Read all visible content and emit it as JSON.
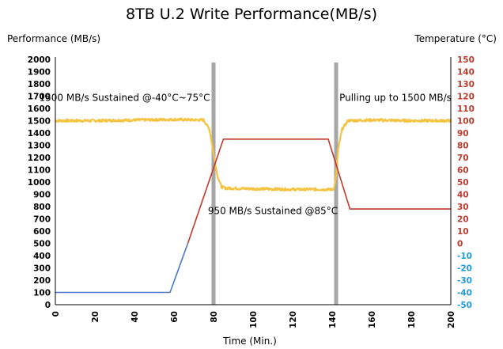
{
  "chart_data": {
    "type": "line",
    "title": "8TB U.2 Write Performance(MB/s)",
    "xlabel": "Time (Min.)",
    "ylabel_left": "Performance (MB/s)",
    "ylabel_right": "Temperature (°C)",
    "xlim": [
      0,
      200
    ],
    "ylim_left": [
      0,
      2000
    ],
    "ylim_right": [
      -50,
      150
    ],
    "x_ticks": [
      "0",
      "20",
      "40",
      "60",
      "80",
      "100",
      "120",
      "140",
      "160",
      "180",
      "200"
    ],
    "y_left_ticks": [
      "0",
      "100",
      "200",
      "300",
      "400",
      "500",
      "600",
      "700",
      "800",
      "900",
      "1000",
      "1100",
      "1200",
      "1300",
      "1400",
      "1500",
      "1600",
      "1700",
      "1800",
      "1900",
      "2000"
    ],
    "y_right_ticks": [
      "-50",
      "-40",
      "-30",
      "-20",
      "-10",
      "0",
      "10",
      "20",
      "30",
      "40",
      "50",
      "60",
      "70",
      "80",
      "90",
      "100",
      "110",
      "120",
      "130",
      "140",
      "150"
    ],
    "vertical_markers": [
      80,
      142
    ],
    "annotations": [
      {
        "text": "1500 MB/s Sustained @-40°C~75°C",
        "x": 35,
        "y": 1660
      },
      {
        "text": "950 MB/s Sustained @85°C",
        "x": 110,
        "y": 740
      },
      {
        "text": "Pulling up to 1500 MB/s",
        "x": 172,
        "y": 1660
      }
    ],
    "series": [
      {
        "axis": "left",
        "color": "#F5C342",
        "x": [
          0,
          20,
          40,
          60,
          75,
          78,
          80,
          82,
          84,
          86,
          100,
          120,
          140,
          141,
          142,
          143,
          145,
          148,
          160,
          180,
          200
        ],
        "y": [
          1500,
          1500,
          1505,
          1510,
          1505,
          1430,
          1230,
          1050,
          960,
          950,
          945,
          940,
          940,
          950,
          1050,
          1260,
          1430,
          1500,
          1505,
          1500,
          1500
        ]
      },
      {
        "axis": "right",
        "color": "#4A78C2",
        "x": [
          0,
          58,
          67
        ],
        "y": [
          -40,
          -40,
          0
        ]
      },
      {
        "axis": "right",
        "color": "#C0392B",
        "x": [
          67,
          85,
          138,
          149,
          200
        ],
        "y": [
          0,
          85,
          85,
          28,
          28
        ]
      }
    ]
  },
  "colors": {
    "marker": "#A6A6A6",
    "right_positive_ticks": "#C0392B",
    "right_negative_ticks": "#1E9BD7",
    "left_ticks": "#000000"
  }
}
